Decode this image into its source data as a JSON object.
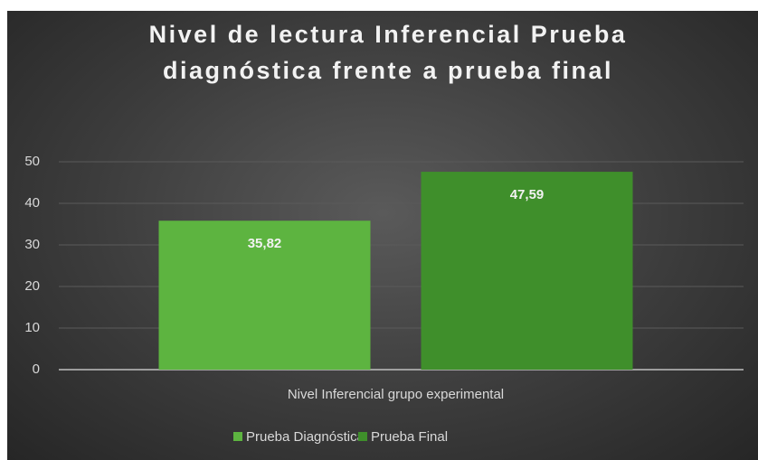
{
  "chart_data": {
    "type": "bar",
    "title": "Nivel de lectura Inferencial Prueba diagnóstica frente a prueba final",
    "categories": [
      "Nivel Inferencial grupo experimental"
    ],
    "series": [
      {
        "name": "Prueba Diagnóstica",
        "color": "#5db440",
        "values": [
          35.82
        ],
        "value_labels": [
          "35,82"
        ]
      },
      {
        "name": "Prueba Final",
        "color": "#3f8f2b",
        "values": [
          47.59
        ],
        "value_labels": [
          "47,59"
        ]
      }
    ],
    "ylim": [
      0,
      50
    ],
    "yticks": [
      0,
      10,
      20,
      30,
      40,
      50
    ],
    "grid": true,
    "legend": "bottom"
  }
}
